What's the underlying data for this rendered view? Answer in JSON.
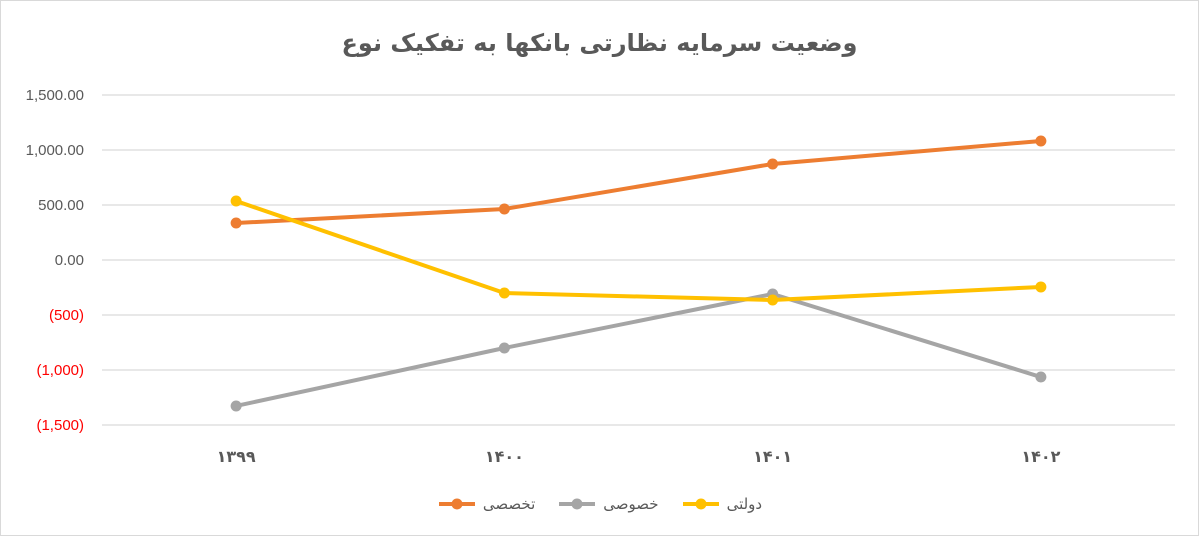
{
  "chart_data": {
    "type": "line",
    "title": "وضعیت سرمایه نظارتی بانکها به تفکیک نوع",
    "xlabel": "",
    "ylabel": "",
    "categories": [
      "۱۳۹۹",
      "۱۴۰۰",
      "۱۴۰۱",
      "۱۴۰۲"
    ],
    "ylim": [
      -1500,
      1500
    ],
    "yticks": [
      1500,
      1000,
      500,
      0,
      -500,
      -1000,
      -1500
    ],
    "ytick_labels": [
      "1,500.00",
      "1,000.00",
      "500.00",
      "0.00",
      "(500)",
      "(1,000)",
      "(1,500)"
    ],
    "negative_tick_color": "#ff0000",
    "positive_tick_color": "#595959",
    "grid": true,
    "legend_position": "bottom",
    "series": [
      {
        "name": "تخصصی",
        "color": "#ed7d31",
        "values": [
          336,
          464,
          873,
          1082
        ]
      },
      {
        "name": "خصوصی",
        "color": "#a5a5a5",
        "values": [
          -1327,
          -800,
          -309,
          -1064
        ]
      },
      {
        "name": "دولتی",
        "color": "#ffc000",
        "values": [
          536,
          -300,
          -364,
          -245
        ]
      }
    ]
  },
  "legend": {
    "items": [
      {
        "label": "تخصصی",
        "color": "#ed7d31"
      },
      {
        "label": "خصوصی",
        "color": "#a5a5a5"
      },
      {
        "label": "دولتی",
        "color": "#ffc000"
      }
    ]
  }
}
